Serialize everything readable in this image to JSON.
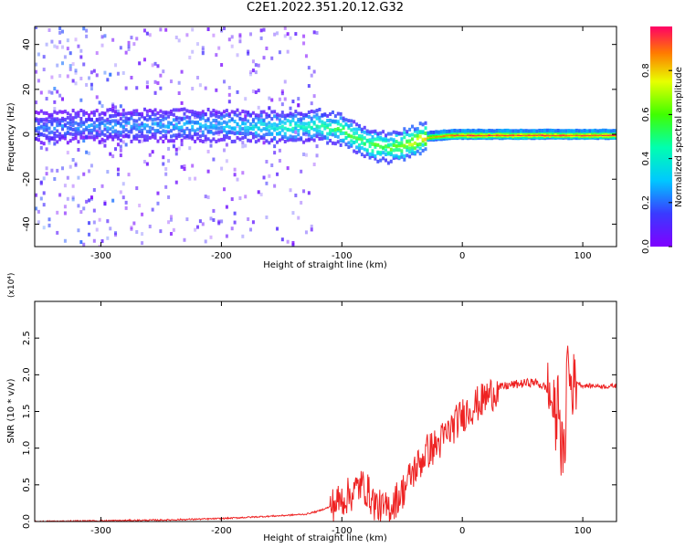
{
  "title": "C2E1.2022.351.20.12.G32",
  "colors": {
    "snr_line": "#ee2222",
    "spectrogram_low": "#8000ff",
    "spectrogram_high": "#ff0000"
  },
  "chart_data": [
    {
      "type": "heatmap",
      "name": "spectrogram",
      "xlabel": "Height of straight line (km)",
      "ylabel": "Frequency (Hz)",
      "xlim": [
        -355,
        128
      ],
      "ylim": [
        -50,
        48
      ],
      "xticks": [
        -300,
        -200,
        -100,
        0,
        100
      ],
      "yticks": [
        -40,
        -20,
        0,
        20,
        40
      ],
      "grid": false,
      "colorbar": {
        "label": "Normalized spectral amplitude",
        "range": [
          0.0,
          1.0
        ],
        "ticks": [
          "0.0",
          "0.2",
          "0.4",
          "0.6",
          "0.8"
        ],
        "colormap": "rainbow (purple to red)"
      },
      "signal_track": {
        "description": "dominant frequency ridge vs height",
        "x": [
          -355,
          -280,
          -200,
          -150,
          -120,
          -100,
          -80,
          -60,
          -45,
          -30,
          -10,
          0,
          50,
          128
        ],
        "y": [
          3,
          4,
          4,
          3,
          4,
          2,
          -4,
          -6,
          -4,
          -1,
          0,
          0,
          0,
          0
        ],
        "amplitude": [
          0.2,
          0.25,
          0.3,
          0.4,
          0.45,
          0.55,
          0.55,
          0.6,
          0.7,
          0.8,
          0.9,
          0.95,
          0.95,
          0.95
        ]
      }
    },
    {
      "type": "line",
      "name": "snr",
      "xlabel": "Height of straight line (km)",
      "ylabel": "SNR (10 * v/v)",
      "y_multiplier": "(x10⁴)",
      "xlim": [
        -355,
        128
      ],
      "ylim": [
        0,
        3.0
      ],
      "xticks": [
        -300,
        -200,
        -100,
        0,
        100
      ],
      "yticks": [
        "0.0",
        "0.5",
        "1.0",
        "1.5",
        "2.0",
        "2.5"
      ],
      "grid": false,
      "series": [
        {
          "x": [
            -355,
            -300,
            -250,
            -200,
            -150,
            -130,
            -120,
            -110,
            -100,
            -95,
            -90,
            -85,
            -80,
            -75,
            -70,
            -65,
            -60,
            -55,
            -50,
            -45,
            -40,
            -35,
            -30,
            -25,
            -20,
            -15,
            -10,
            -5,
            0,
            5,
            10,
            15,
            20,
            25,
            30,
            40,
            50,
            60,
            65,
            70,
            75,
            78,
            80,
            82,
            85,
            87,
            90,
            95,
            100,
            110,
            120,
            128
          ],
          "y": [
            0.0,
            0.01,
            0.02,
            0.04,
            0.08,
            0.1,
            0.14,
            0.2,
            0.3,
            0.35,
            0.4,
            0.5,
            0.45,
            0.3,
            0.2,
            0.15,
            0.2,
            0.3,
            0.4,
            0.55,
            0.7,
            0.8,
            0.95,
            1.0,
            1.05,
            1.15,
            1.25,
            1.35,
            1.45,
            1.52,
            1.58,
            1.62,
            1.7,
            1.75,
            1.82,
            1.86,
            1.88,
            1.9,
            1.86,
            1.82,
            1.6,
            1.3,
            1.85,
            1.0,
            0.8,
            2.3,
            1.85,
            1.9,
            1.85,
            1.85,
            1.84,
            1.85
          ]
        }
      ]
    }
  ]
}
